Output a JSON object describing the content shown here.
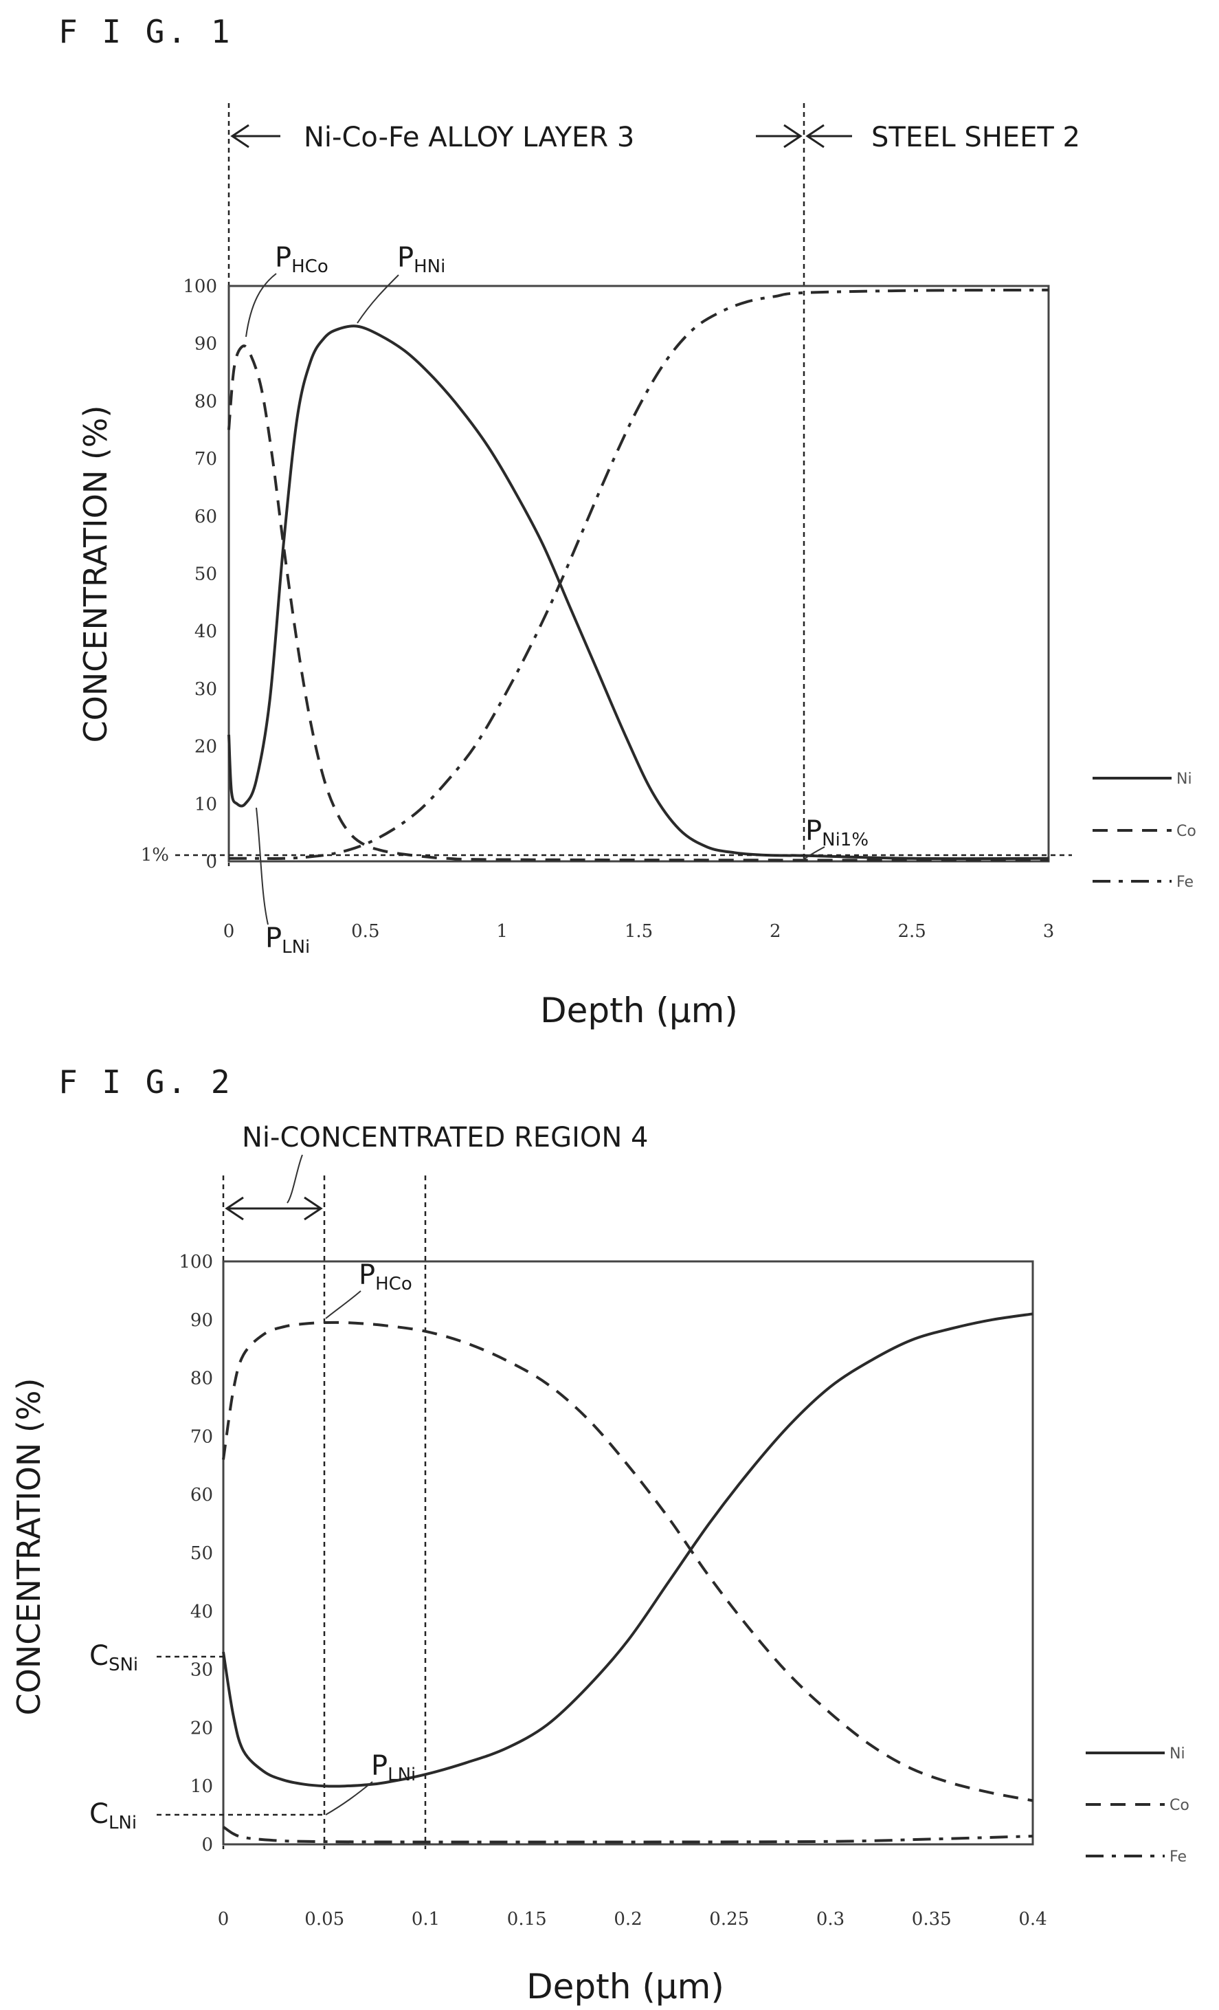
{
  "figures": [
    {
      "label": "F I G. 1",
      "region_labels": [
        "Ni-Co-Fe ALLOY LAYER 3",
        "STEEL SHEET 2"
      ],
      "point_labels": [
        {
          "main": "P",
          "sub": "HCo"
        },
        {
          "main": "P",
          "sub": "HNi"
        },
        {
          "main": "P",
          "sub": "LNi"
        },
        {
          "main": "P",
          "sub": "Ni1%"
        }
      ],
      "extra_y_labels": [
        "1%"
      ]
    },
    {
      "label": "F I G. 2",
      "region_labels": [
        "Ni-CONCENTRATED REGION 4"
      ],
      "point_labels": [
        {
          "main": "P",
          "sub": "HCo"
        },
        {
          "main": "P",
          "sub": "LNi"
        }
      ],
      "extra_y_labels": [
        {
          "main": "C",
          "sub": "SNi"
        },
        {
          "main": "C",
          "sub": "LNi"
        }
      ]
    }
  ],
  "chart_data": [
    {
      "type": "line",
      "title": "",
      "xlabel": "Depth (μm)",
      "ylabel": "CONCENTRATION (%)",
      "xlim": [
        0,
        3
      ],
      "ylim": [
        0,
        100
      ],
      "x_ticks": [
        "0",
        "0.5",
        "1",
        "1.5",
        "2",
        "2.5",
        "3"
      ],
      "y_ticks": [
        "0",
        "10",
        "20",
        "30",
        "40",
        "50",
        "60",
        "70",
        "80",
        "90",
        "100"
      ],
      "legend_position": "right",
      "series": [
        {
          "name": "Ni",
          "style": "solid",
          "x": [
            0,
            0.01,
            0.03,
            0.06,
            0.1,
            0.15,
            0.2,
            0.25,
            0.3,
            0.35,
            0.4,
            0.47,
            0.55,
            0.65,
            0.75,
            0.85,
            0.95,
            1.05,
            1.15,
            1.25,
            1.35,
            1.45,
            1.55,
            1.65,
            1.75,
            1.85,
            1.95,
            2.05,
            2.1,
            2.5,
            3
          ],
          "y": [
            22,
            12,
            10,
            10,
            14,
            28,
            55,
            77,
            87,
            91,
            92.5,
            93,
            91.5,
            88.5,
            84,
            78.5,
            72,
            64,
            55,
            44,
            33,
            22,
            12,
            5.5,
            2.5,
            1.5,
            1.1,
            1,
            1,
            0.5,
            0.5
          ]
        },
        {
          "name": "Co",
          "style": "dashed",
          "x": [
            0,
            0.02,
            0.05,
            0.08,
            0.12,
            0.16,
            0.2,
            0.25,
            0.3,
            0.35,
            0.4,
            0.45,
            0.5,
            0.55,
            0.6,
            0.7,
            0.8,
            1,
            2,
            3
          ],
          "y": [
            75,
            86,
            89.5,
            88,
            82,
            70,
            55,
            38,
            24,
            14,
            8,
            4.5,
            2.8,
            2,
            1.5,
            0.9,
            0.5,
            0.3,
            0.2,
            0.2
          ]
        },
        {
          "name": "Fe",
          "style": "dash-dot",
          "x": [
            0,
            0.1,
            0.2,
            0.3,
            0.4,
            0.5,
            0.6,
            0.7,
            0.8,
            0.9,
            1,
            1.1,
            1.2,
            1.3,
            1.4,
            1.5,
            1.6,
            1.7,
            1.8,
            1.9,
            2,
            2.1,
            2.5,
            3
          ],
          "y": [
            0.5,
            0.5,
            0.5,
            0.8,
            1.5,
            3,
            5.5,
            9,
            14,
            20,
            28,
            37,
            47,
            58,
            69,
            79,
            87,
            92.5,
            95.5,
            97.3,
            98.2,
            98.8,
            99.2,
            99.3
          ]
        }
      ]
    },
    {
      "type": "line",
      "title": "",
      "xlabel": "Depth (μm)",
      "ylabel": "CONCENTRATION (%)",
      "xlim": [
        0,
        0.4
      ],
      "ylim": [
        0,
        100
      ],
      "x_ticks": [
        "0",
        "0.05",
        "0.1",
        "0.15",
        "0.2",
        "0.25",
        "0.3",
        "0.35",
        "0.4"
      ],
      "y_ticks": [
        "0",
        "10",
        "20",
        "30",
        "40",
        "50",
        "60",
        "70",
        "80",
        "90",
        "100"
      ],
      "legend_position": "right",
      "series": [
        {
          "name": "Ni",
          "style": "solid",
          "x": [
            0,
            0.005,
            0.01,
            0.02,
            0.03,
            0.04,
            0.05,
            0.06,
            0.07,
            0.08,
            0.1,
            0.12,
            0.14,
            0.16,
            0.18,
            0.2,
            0.22,
            0.24,
            0.26,
            0.28,
            0.3,
            0.32,
            0.34,
            0.36,
            0.38,
            0.4
          ],
          "y": [
            33,
            22,
            16,
            12.5,
            11,
            10.3,
            10,
            10,
            10.2,
            10.6,
            12,
            14,
            16.5,
            20.5,
            27,
            35,
            45,
            55,
            64,
            72,
            78.5,
            83,
            86.5,
            88.5,
            90,
            91
          ]
        },
        {
          "name": "Co",
          "style": "dashed",
          "x": [
            0,
            0.005,
            0.01,
            0.02,
            0.03,
            0.04,
            0.05,
            0.06,
            0.07,
            0.08,
            0.1,
            0.12,
            0.14,
            0.16,
            0.18,
            0.2,
            0.22,
            0.24,
            0.26,
            0.28,
            0.3,
            0.32,
            0.34,
            0.36,
            0.38,
            0.4
          ],
          "y": [
            66,
            78,
            84,
            87.5,
            88.8,
            89.3,
            89.5,
            89.5,
            89.3,
            89,
            88,
            86,
            83,
            79,
            73,
            65,
            56,
            46,
            37,
            29,
            22.5,
            17,
            13,
            10.5,
            8.8,
            7.5
          ]
        },
        {
          "name": "Fe",
          "style": "dash-dot",
          "x": [
            0,
            0.005,
            0.01,
            0.02,
            0.04,
            0.1,
            0.2,
            0.3,
            0.35,
            0.4
          ],
          "y": [
            3,
            1.8,
            1.2,
            0.8,
            0.5,
            0.4,
            0.4,
            0.5,
            0.9,
            1.4
          ]
        }
      ]
    }
  ]
}
